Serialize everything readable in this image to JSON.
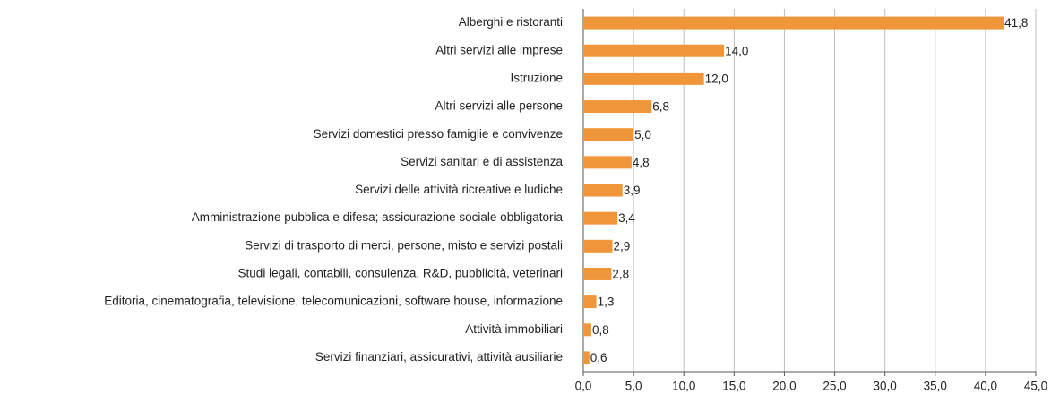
{
  "chart_data": {
    "type": "bar",
    "orientation": "horizontal",
    "categories": [
      "Alberghi e ristoranti",
      "Altri servizi alle imprese",
      "Istruzione",
      "Altri servizi alle persone",
      "Servizi domestici presso famiglie e convivenze",
      "Servizi sanitari e di assistenza",
      "Servizi delle attività ricreative e ludiche",
      "Amministrazione pubblica e difesa; assicurazione sociale obbligatoria",
      "Servizi di trasporto di merci, persone, misto e servizi postali",
      "Studi legali, contabili, consulenza, R&D, pubblicità, veterinari",
      "Editoria, cinematografia, televisione, telecomunicazioni, software house, informazione",
      "Attività immobiliari",
      "Servizi finanziari, assicurativi, attività ausiliarie"
    ],
    "values": [
      41.8,
      14.0,
      12.0,
      6.8,
      5.0,
      4.8,
      3.9,
      3.4,
      2.9,
      2.8,
      1.3,
      0.8,
      0.6
    ],
    "value_labels": [
      "41,8",
      "14,0",
      "12,0",
      "6,8",
      "5,0",
      "4,8",
      "3,9",
      "3,4",
      "2,9",
      "2,8",
      "1,3",
      "0,8",
      "0,6"
    ],
    "color": "#f0963a",
    "xlim": [
      0,
      45
    ],
    "xticks": [
      {
        "value": 0,
        "label": "0,0"
      },
      {
        "value": 5,
        "label": "5,0"
      },
      {
        "value": 10,
        "label": "10,0"
      },
      {
        "value": 15,
        "label": "15,0"
      },
      {
        "value": 20,
        "label": "20,0"
      },
      {
        "value": 25,
        "label": "25,0"
      },
      {
        "value": 30,
        "label": "30,0"
      },
      {
        "value": 35,
        "label": "35,0"
      },
      {
        "value": 40,
        "label": "40,0"
      },
      {
        "value": 45,
        "label": "45,0"
      }
    ],
    "grid": true
  }
}
